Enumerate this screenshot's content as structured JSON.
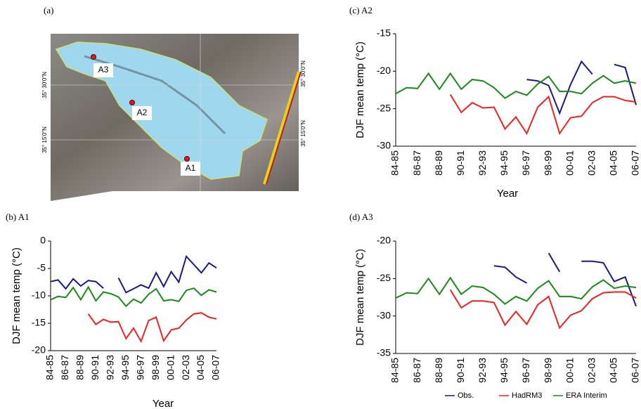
{
  "map": {
    "label": "(a)",
    "sites": [
      "A3",
      "A2",
      "A1"
    ],
    "left_coords": [
      "35° 30'0\"N",
      "35° 15'0\"N"
    ],
    "right_coords": [
      "35° 30'0\"N",
      "35° 15'0\"N"
    ]
  },
  "chart_data": [
    {
      "type": "line",
      "title": "(b) A1",
      "ylabel": "DJF mean temp (°C)",
      "xlabel": "Year",
      "categories": [
        "84-85",
        null,
        "86-87",
        null,
        "88-89",
        null,
        "90-91",
        null,
        "92-93",
        null,
        "94-95",
        null,
        "96-97",
        null,
        "98-99",
        null,
        "00-01",
        null,
        "02-03",
        null,
        "04-05",
        null,
        "06-07"
      ],
      "series": [
        {
          "color": "#1a1a80",
          "values": [
            -7.4,
            -7.1,
            -8.7,
            -6.9,
            -8.2,
            -7.2,
            -7.4,
            -8.6,
            null,
            -6.7,
            -9.4,
            -8.7,
            -8.0,
            -8.6,
            -5.8,
            -8.3,
            -5.6,
            -7.5,
            -2.8,
            -4.3,
            -5.8,
            -4.0,
            -4.9
          ]
        },
        {
          "color": "#ee2222",
          "values": [
            null,
            null,
            null,
            null,
            null,
            -13.3,
            -15.2,
            -14.3,
            -14.8,
            -14.7,
            -17.8,
            -15.9,
            -18.3,
            -14.5,
            -13.9,
            -18.2,
            -16.2,
            -15.9,
            -14.4,
            -13.3,
            -13.1,
            -13.9,
            -14.2
          ]
        },
        {
          "color": "#1a8a1a",
          "values": [
            -10.7,
            -10.1,
            -10.3,
            -8.5,
            -10.7,
            -8.4,
            -10.9,
            -9.3,
            -9.6,
            -10.2,
            -11.9,
            -10.6,
            -11.3,
            -9.7,
            -8.7,
            -10.9,
            -10.7,
            -11.0,
            -9.0,
            -8.6,
            -9.9,
            -8.9,
            -9.3
          ]
        }
      ],
      "ylim": [
        -20,
        0
      ],
      "yticks": [
        -20,
        -15,
        -10,
        -5,
        0
      ]
    },
    {
      "type": "line",
      "title": "(c) A2",
      "ylabel": "DJF mean temp (°C)",
      "xlabel": "Year",
      "categories": [
        "84-85",
        null,
        "86-87",
        null,
        "88-89",
        null,
        "90-91",
        null,
        "92-93",
        null,
        "94-95",
        null,
        "96-97",
        null,
        "98-99",
        null,
        "00-01",
        null,
        "02-03",
        null,
        "04-05",
        null,
        "06-07"
      ],
      "series": [
        {
          "color": "#1a1a80",
          "values": [
            null,
            null,
            null,
            null,
            null,
            null,
            null,
            null,
            null,
            null,
            null,
            null,
            -21.1,
            -21.3,
            -21.9,
            -25.6,
            -21.8,
            -18.7,
            -20.4,
            null,
            -19.1,
            -19.5,
            -24.5
          ]
        },
        {
          "color": "#ee2222",
          "values": [
            null,
            null,
            null,
            null,
            null,
            -23.1,
            -25.5,
            -24.2,
            -24.9,
            -24.8,
            -27.7,
            -26.1,
            -28.3,
            -24.8,
            -23.4,
            -28.3,
            -26.2,
            -26.0,
            -24.2,
            -23.4,
            -23.4,
            -23.9,
            -24.1
          ]
        },
        {
          "color": "#1a8a1a",
          "values": [
            -23.0,
            -22.2,
            -22.3,
            -20.3,
            -22.4,
            -20.3,
            -22.4,
            -21.1,
            -21.3,
            -22.2,
            -23.6,
            -22.7,
            -23.2,
            -21.7,
            -20.7,
            -22.7,
            -22.7,
            -23.0,
            -21.6,
            -20.6,
            -21.6,
            -21.3,
            -21.6
          ]
        }
      ],
      "ylim": [
        -30,
        -15
      ],
      "yticks": [
        -30,
        -25,
        -20,
        -15
      ]
    },
    {
      "type": "line",
      "title": "(d) A3",
      "ylabel": "DJF mean temp (°C)",
      "legend": "below",
      "categories": [
        "84-85",
        null,
        "86-87",
        null,
        "88-89",
        null,
        "90-91",
        null,
        "92-93",
        null,
        "94-95",
        null,
        "96-97",
        null,
        "98-99",
        null,
        "00-01",
        null,
        "02-03",
        null,
        "04-05",
        null,
        "06-07"
      ],
      "series": [
        {
          "name": "Obs.",
          "color": "#1a1a80",
          "values": [
            null,
            null,
            null,
            null,
            null,
            null,
            null,
            null,
            null,
            -23.3,
            -23.5,
            -24.8,
            -25.6,
            null,
            -21.6,
            -24.1,
            null,
            -22.7,
            -22.7,
            -22.9,
            -25.4,
            -24.8,
            -28.7
          ]
        },
        {
          "name": "HadRM3",
          "color": "#ee2222",
          "values": [
            null,
            null,
            null,
            null,
            null,
            -26.5,
            -28.9,
            -28.0,
            -28.0,
            -28.2,
            -31.2,
            -29.4,
            -31.1,
            -28.5,
            -27.4,
            -31.6,
            -29.9,
            -29.3,
            -27.7,
            -26.9,
            -26.8,
            -26.8,
            -27.6
          ]
        },
        {
          "name": "ERA Interim",
          "color": "#1a8a1a",
          "values": [
            -27.6,
            -26.9,
            -27.0,
            -25.0,
            -27.1,
            -24.9,
            -27.1,
            -26.0,
            -26.2,
            -27.1,
            -28.4,
            -27.4,
            -28.0,
            -26.3,
            -25.3,
            -27.4,
            -27.4,
            -27.7,
            -26.1,
            -25.2,
            -26.3,
            -26.0,
            -26.2
          ]
        }
      ],
      "ylim": [
        -35,
        -20
      ],
      "yticks": [
        -35,
        -30,
        -25,
        -20
      ]
    }
  ]
}
